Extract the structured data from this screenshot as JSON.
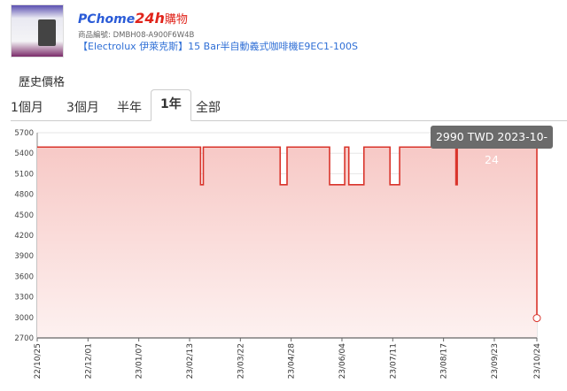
{
  "header": {
    "logo_brand": "PChome",
    "logo_24h": "24h",
    "logo_suffix": "購物",
    "sku_label": "商品編號:",
    "sku": "DMBH08-A900F6W4B",
    "product_title": "【Electrolux 伊萊克斯】15 Bar半自動義式咖啡機E9EC1-100S"
  },
  "history_title": "歷史價格",
  "tabs": [
    {
      "label": "1個月"
    },
    {
      "label": "3個月"
    },
    {
      "label": "半年"
    },
    {
      "label": "1年",
      "active": true
    },
    {
      "label": "全部"
    }
  ],
  "tooltip": "2990 TWD 2023-10-24",
  "chart_data": {
    "type": "line",
    "step": true,
    "area": true,
    "color": "#d9342b",
    "ylim": [
      2700,
      5700
    ],
    "yticks": [
      2700,
      3000,
      3300,
      3600,
      3900,
      4200,
      4500,
      4800,
      5100,
      5400,
      5700
    ],
    "xlim": [
      "2022-10-25",
      "2023-10-24"
    ],
    "xticks": [
      "22/10/25",
      "22/12/01",
      "23/01/07",
      "23/02/13",
      "23/03/22",
      "23/04/28",
      "23/06/04",
      "23/07/11",
      "23/08/17",
      "23/09/23",
      "23/10/24"
    ],
    "xtick_dates": [
      "2022-10-25",
      "2022-12-01",
      "2023-01-07",
      "2023-02-13",
      "2023-03-22",
      "2023-04-28",
      "2023-06-04",
      "2023-07-11",
      "2023-08-17",
      "2023-09-23",
      "2023-10-24"
    ],
    "points": [
      [
        "2022-10-25",
        5490
      ],
      [
        "2023-02-21",
        4940
      ],
      [
        "2023-02-23",
        5490
      ],
      [
        "2023-04-20",
        4940
      ],
      [
        "2023-04-25",
        5490
      ],
      [
        "2023-05-26",
        4940
      ],
      [
        "2023-06-06",
        5490
      ],
      [
        "2023-06-09",
        4940
      ],
      [
        "2023-06-20",
        5490
      ],
      [
        "2023-07-09",
        4940
      ],
      [
        "2023-07-16",
        5490
      ],
      [
        "2023-08-26",
        4940
      ],
      [
        "2023-08-27",
        5490
      ],
      [
        "2023-10-24",
        2990
      ]
    ],
    "highlight": {
      "date": "2023-10-24",
      "value": 2990
    }
  }
}
